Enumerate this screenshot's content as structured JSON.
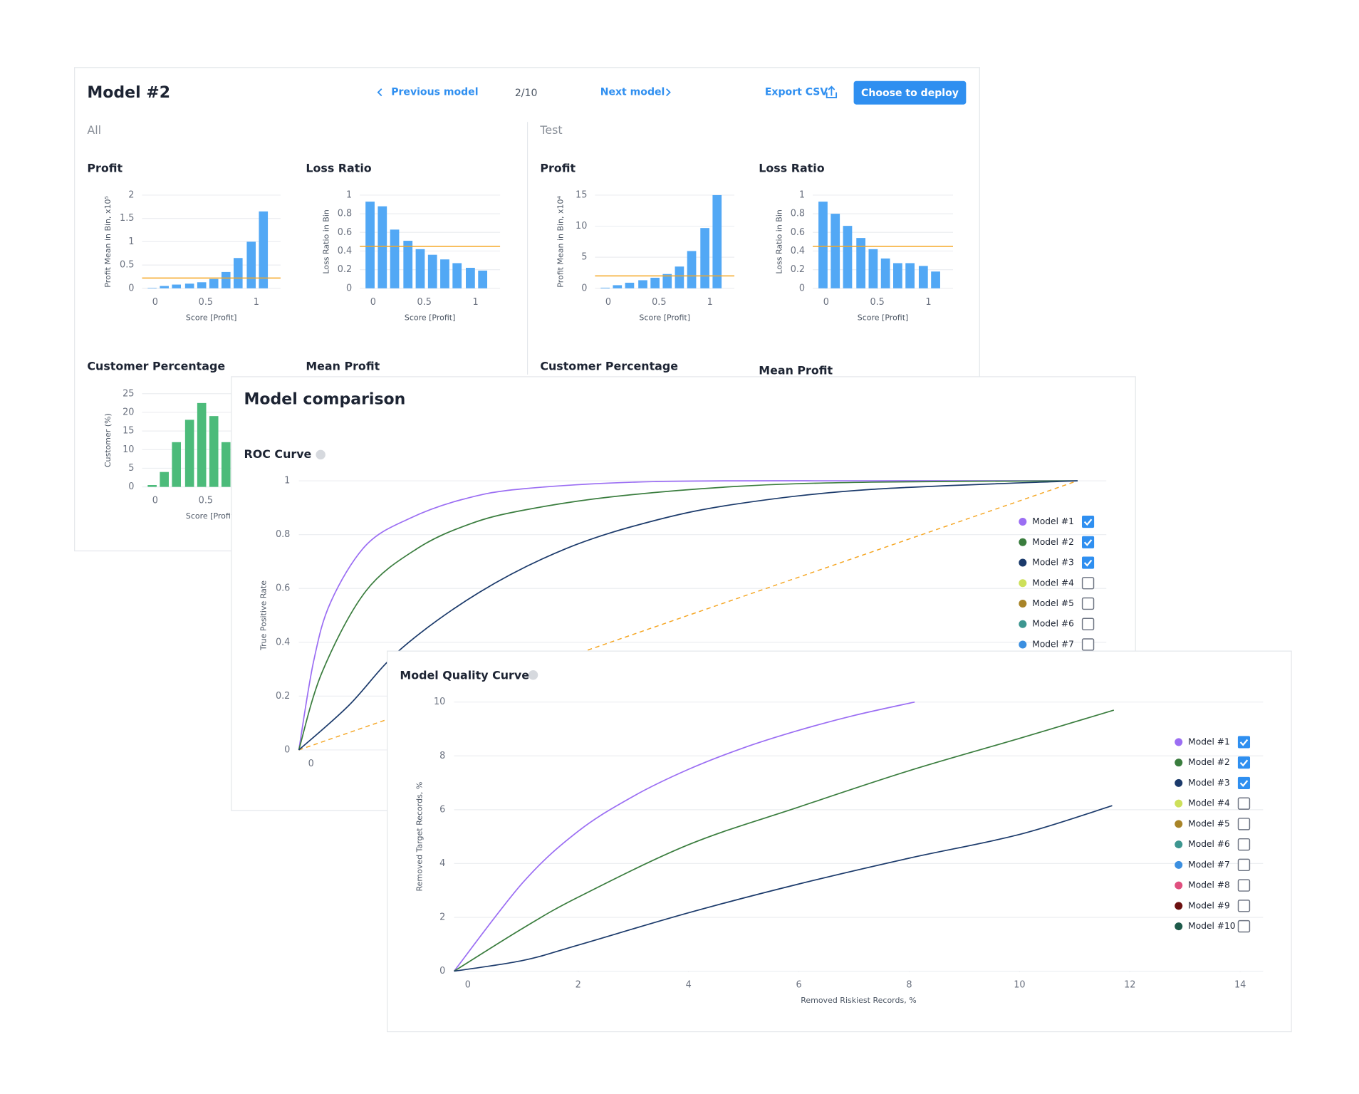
{
  "header": {
    "title": "Model #2",
    "prev": "Previous model",
    "page": "2/10",
    "next": "Next model",
    "export": "Export CSV",
    "deploy": "Choose to deploy"
  },
  "sections": [
    "All",
    "Test"
  ],
  "comparison_title": "Model comparison",
  "chart_data": [
    {
      "type": "bar",
      "title": "Profit",
      "x": [
        -0.03,
        0.09,
        0.21,
        0.34,
        0.46,
        0.58,
        0.7,
        0.82,
        0.95,
        1.07
      ],
      "values": [
        0.01,
        0.05,
        0.08,
        0.1,
        0.13,
        0.2,
        0.35,
        0.65,
        1.0,
        1.65
      ],
      "color": "#52a8f5",
      "xlim": [
        -0.13,
        1.24
      ],
      "xticks": [
        0,
        0.5,
        1
      ],
      "ylim": [
        0,
        2
      ],
      "yticks": [
        0,
        0.5,
        1,
        1.5,
        2
      ],
      "x_label": "Score [Profit]",
      "y_label": "Profit Mean in Bin, x10⁵",
      "reference_line": {
        "value": 0.22,
        "color": "#f5a623"
      },
      "grid": true
    },
    {
      "type": "bar",
      "title": "Loss Ratio",
      "x": [
        -0.03,
        0.09,
        0.21,
        0.34,
        0.46,
        0.58,
        0.7,
        0.82,
        0.95,
        1.07
      ],
      "values": [
        0.93,
        0.88,
        0.63,
        0.51,
        0.42,
        0.36,
        0.31,
        0.27,
        0.22,
        0.19
      ],
      "color": "#52a8f5",
      "xlim": [
        -0.13,
        1.24
      ],
      "xticks": [
        0,
        0.5,
        1
      ],
      "ylim": [
        0,
        1
      ],
      "yticks": [
        0,
        0.2,
        0.4,
        0.6,
        0.8,
        1
      ],
      "x_label": "Score [Profit]",
      "y_label": "Loss Ratio in Bin",
      "reference_line": {
        "value": 0.45,
        "color": "#f5a623"
      },
      "grid": true
    },
    {
      "type": "bar",
      "title": "Profit",
      "x": [
        -0.03,
        0.09,
        0.21,
        0.34,
        0.46,
        0.58,
        0.7,
        0.82,
        0.95,
        1.07
      ],
      "values": [
        0.1,
        0.5,
        0.9,
        1.3,
        1.7,
        2.3,
        3.5,
        6,
        9.7,
        15
      ],
      "color": "#52a8f5",
      "xlim": [
        -0.13,
        1.24
      ],
      "xticks": [
        0,
        0.5,
        1
      ],
      "ylim": [
        0,
        15
      ],
      "yticks": [
        0,
        5,
        10,
        15
      ],
      "x_label": "Score [Profit]",
      "y_label": "Profit Mean in Bin, x10⁴",
      "reference_line": {
        "value": 2,
        "color": "#f5a623"
      },
      "grid": true
    },
    {
      "type": "bar",
      "title": "Loss Ratio",
      "x": [
        -0.03,
        0.09,
        0.21,
        0.34,
        0.46,
        0.58,
        0.7,
        0.82,
        0.95,
        1.07
      ],
      "values": [
        0.93,
        0.8,
        0.67,
        0.54,
        0.42,
        0.32,
        0.27,
        0.27,
        0.24,
        0.18
      ],
      "color": "#52a8f5",
      "xlim": [
        -0.13,
        1.24
      ],
      "xticks": [
        0,
        0.5,
        1
      ],
      "ylim": [
        0,
        1
      ],
      "yticks": [
        0,
        0.2,
        0.4,
        0.6,
        0.8,
        1
      ],
      "x_label": "Score [Profit]",
      "y_label": "Loss Ratio in Bin",
      "reference_line": {
        "value": 0.45,
        "color": "#f5a623"
      },
      "grid": true
    },
    {
      "type": "bar",
      "title": "Customer Percentage",
      "x": [
        -0.03,
        0.09,
        0.21,
        0.34,
        0.46,
        0.58,
        0.7
      ],
      "values": [
        0.5,
        4,
        12,
        18,
        22.5,
        19,
        12
      ],
      "color": "#4cbb7a",
      "xlim": [
        -0.13,
        1.24
      ],
      "xticks": [
        0,
        0.5,
        1
      ],
      "ylim": [
        0,
        25
      ],
      "yticks": [
        0,
        5,
        10,
        15,
        20,
        25
      ],
      "x_label": "Score [Profit]",
      "y_label": "Customer (%)",
      "grid": true
    },
    {
      "title": "Mean Profit"
    },
    {
      "title": "Customer Percentage"
    },
    {
      "title": "Mean Profit"
    },
    {
      "type": "line",
      "title": "ROC Curve",
      "y_label": "True Positive Rate",
      "xlim": [
        0,
        1
      ],
      "xticks": [
        0
      ],
      "ylim": [
        0,
        1
      ],
      "yticks": [
        0,
        0.2,
        0.4,
        0.6,
        0.8,
        1
      ],
      "grid": true,
      "baseline": {
        "x": [
          0,
          1
        ],
        "values": [
          0,
          1
        ],
        "color": "#f5a623"
      },
      "series": [
        {
          "name": "Model #1",
          "color": "#9b6ef3",
          "checked": true,
          "x": [
            0,
            0.019,
            0.041,
            0.086,
            0.142,
            0.209,
            0.287,
            0.455,
            0.735,
            1
          ],
          "values": [
            0,
            0.33,
            0.55,
            0.76,
            0.86,
            0.93,
            0.97,
            0.997,
            1,
            1
          ]
        },
        {
          "name": "Model #2",
          "color": "#3a7d3e",
          "checked": true,
          "x": [
            0,
            0.03,
            0.086,
            0.153,
            0.22,
            0.287,
            0.4,
            0.567,
            0.735,
            1
          ],
          "values": [
            0,
            0.29,
            0.59,
            0.75,
            0.84,
            0.89,
            0.94,
            0.98,
            0.995,
            1
          ]
        },
        {
          "name": "Model #3",
          "color": "#1b3a6b",
          "checked": true,
          "x": [
            0,
            0.064,
            0.131,
            0.232,
            0.343,
            0.455,
            0.567,
            0.735,
            1
          ],
          "values": [
            0,
            0.165,
            0.375,
            0.586,
            0.748,
            0.851,
            0.916,
            0.968,
            1
          ]
        },
        {
          "name": "Model #4",
          "color": "#cde05a",
          "checked": false
        },
        {
          "name": "Model #5",
          "color": "#a88428",
          "checked": false
        },
        {
          "name": "Model #6",
          "color": "#3d9690",
          "checked": false
        },
        {
          "name": "Model #7",
          "color": "#3b8fe0",
          "checked": false
        }
      ]
    },
    {
      "type": "line",
      "title": "Model Quality Curve",
      "x_label": "Removed Riskiest Records, %",
      "y_label": "Removed Target Records, %",
      "xlim": [
        -0.25,
        14.4
      ],
      "xticks": [
        0,
        2,
        4,
        6,
        8,
        10,
        12,
        14
      ],
      "ylim": [
        0,
        10
      ],
      "yticks": [
        0,
        2,
        4,
        6,
        8,
        10
      ],
      "grid": true,
      "series": [
        {
          "name": "Model #1",
          "color": "#9b6ef3",
          "checked": true,
          "x": [
            -0.25,
            1,
            2,
            3,
            4,
            5,
            6,
            7,
            8.1
          ],
          "values": [
            0,
            3.3,
            5.2,
            6.5,
            7.5,
            8.3,
            8.95,
            9.5,
            10
          ]
        },
        {
          "name": "Model #2",
          "color": "#3a7d3e",
          "checked": true,
          "x": [
            -0.25,
            1,
            2,
            4,
            6,
            8,
            10,
            11.71
          ],
          "values": [
            0,
            1.6,
            2.75,
            4.7,
            6.1,
            7.45,
            8.65,
            9.7
          ]
        },
        {
          "name": "Model #3",
          "color": "#1b3a6b",
          "checked": true,
          "x": [
            -0.25,
            1,
            2,
            4,
            6,
            8,
            10,
            11.68
          ],
          "values": [
            0,
            0.4,
            0.97,
            2.17,
            3.24,
            4.2,
            5.08,
            6.15
          ]
        },
        {
          "name": "Model #4",
          "color": "#cde05a",
          "checked": false
        },
        {
          "name": "Model #5",
          "color": "#a88428",
          "checked": false
        },
        {
          "name": "Model #6",
          "color": "#3d9690",
          "checked": false
        },
        {
          "name": "Model #7",
          "color": "#3b8fe0",
          "checked": false
        },
        {
          "name": "Model #8",
          "color": "#e0507f",
          "checked": false
        },
        {
          "name": "Model #9",
          "color": "#6b1010",
          "checked": false
        },
        {
          "name": "Model #10",
          "color": "#1e5a4a",
          "checked": false
        }
      ]
    }
  ]
}
